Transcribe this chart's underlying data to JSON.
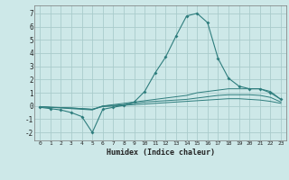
{
  "xlabel": "Humidex (Indice chaleur)",
  "background_color": "#cde8e8",
  "grid_color": "#aacccc",
  "line_color": "#2e7d7d",
  "xlim": [
    -0.5,
    23.5
  ],
  "ylim": [
    -2.6,
    7.6
  ],
  "xticks": [
    0,
    1,
    2,
    3,
    4,
    5,
    6,
    7,
    8,
    9,
    10,
    11,
    12,
    13,
    14,
    15,
    16,
    17,
    18,
    19,
    20,
    21,
    22,
    23
  ],
  "yticks": [
    -2,
    -1,
    0,
    1,
    2,
    3,
    4,
    5,
    6,
    7
  ],
  "line1_x": [
    0,
    1,
    2,
    3,
    4,
    5,
    6,
    7,
    8,
    9,
    10,
    11,
    12,
    13,
    14,
    15,
    16,
    17,
    18,
    19,
    20,
    21,
    22,
    23
  ],
  "line1_y": [
    -0.1,
    -0.2,
    -0.3,
    -0.5,
    -0.8,
    -2.0,
    -0.25,
    -0.1,
    0.05,
    0.3,
    1.1,
    2.5,
    3.7,
    5.3,
    6.8,
    7.0,
    6.3,
    3.6,
    2.1,
    1.5,
    1.3,
    1.3,
    1.0,
    0.5
  ],
  "line2_x": [
    0,
    1,
    2,
    3,
    4,
    5,
    6,
    7,
    8,
    9,
    10,
    11,
    12,
    13,
    14,
    15,
    16,
    17,
    18,
    19,
    20,
    21,
    22,
    23
  ],
  "line2_y": [
    -0.05,
    -0.1,
    -0.15,
    -0.2,
    -0.25,
    -0.3,
    0.0,
    0.1,
    0.2,
    0.3,
    0.4,
    0.5,
    0.6,
    0.7,
    0.8,
    1.0,
    1.1,
    1.2,
    1.3,
    1.3,
    1.3,
    1.3,
    1.1,
    0.5
  ],
  "line3_x": [
    0,
    1,
    2,
    3,
    4,
    5,
    6,
    7,
    8,
    9,
    10,
    11,
    12,
    13,
    14,
    15,
    16,
    17,
    18,
    19,
    20,
    21,
    22,
    23
  ],
  "line3_y": [
    -0.05,
    -0.1,
    -0.12,
    -0.15,
    -0.2,
    -0.25,
    0.0,
    0.05,
    0.1,
    0.2,
    0.3,
    0.35,
    0.4,
    0.45,
    0.5,
    0.6,
    0.7,
    0.8,
    0.85,
    0.85,
    0.85,
    0.8,
    0.65,
    0.3
  ],
  "line4_x": [
    0,
    1,
    2,
    3,
    4,
    5,
    6,
    7,
    8,
    9,
    10,
    11,
    12,
    13,
    14,
    15,
    16,
    17,
    18,
    19,
    20,
    21,
    22,
    23
  ],
  "line4_y": [
    -0.05,
    -0.1,
    -0.12,
    -0.15,
    -0.2,
    -0.25,
    -0.05,
    0.0,
    0.05,
    0.1,
    0.15,
    0.2,
    0.25,
    0.3,
    0.35,
    0.4,
    0.45,
    0.5,
    0.55,
    0.55,
    0.5,
    0.45,
    0.35,
    0.2
  ]
}
